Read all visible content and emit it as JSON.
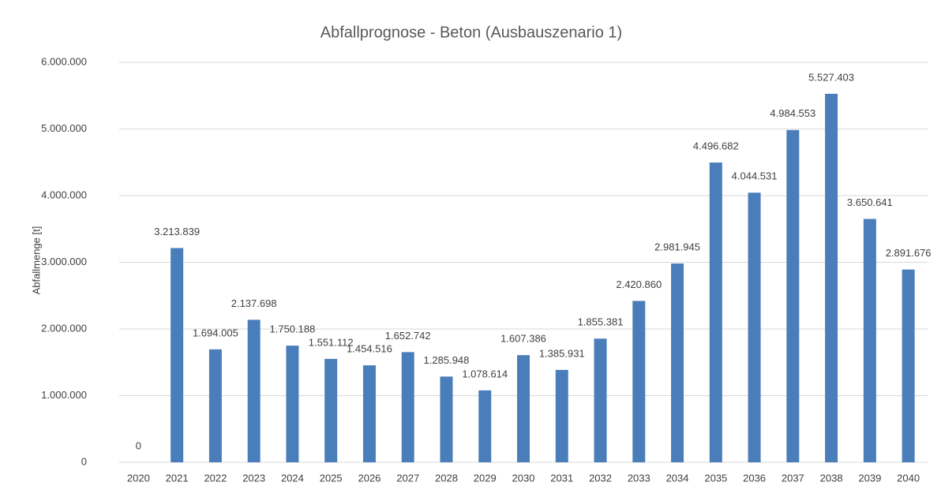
{
  "chart_data": {
    "type": "bar",
    "title": "Abfallprognose - Beton (Ausbauszenario 1)",
    "y_label": "Abfallmenge [t]",
    "categories": [
      "2020",
      "2021",
      "2022",
      "2023",
      "2024",
      "2025",
      "2026",
      "2027",
      "2028",
      "2029",
      "2030",
      "2031",
      "2032",
      "2033",
      "2034",
      "2035",
      "2036",
      "2037",
      "2038",
      "2039",
      "2040"
    ],
    "values": [
      0,
      3213839,
      1694005,
      2137698,
      1750188,
      1551112,
      1454516,
      1652742,
      1285948,
      1078614,
      1607386,
      1385931,
      1855381,
      2420860,
      2981945,
      4496682,
      4044531,
      4984553,
      5527403,
      3650641,
      2891676
    ],
    "value_labels": [
      "0",
      "3.213.839",
      "1.694.005",
      "2.137.698",
      "1.750.188",
      "1.551.112",
      "1.454.516",
      "1.652.742",
      "1.285.948",
      "1.078.614",
      "1.607.386",
      "1.385.931",
      "1.855.381",
      "2.420.860",
      "2.981.945",
      "4.496.682",
      "4.044.531",
      "4.984.553",
      "5.527.403",
      "3.650.641",
      "2.891.676"
    ],
    "color": "#4a7ebb",
    "ylim": [
      0,
      6000000
    ],
    "yticks": [
      0,
      {
        "value": 1000000,
        "label": "1.000.000"
      },
      {
        "value": 2000000,
        "label": "2.000.000"
      },
      {
        "value": 3000000,
        "label": "3.000.000"
      },
      {
        "value": 4000000,
        "label": "4.000.000"
      },
      {
        "value": 5000000,
        "label": "5.000.000"
      },
      {
        "value": 6000000,
        "label": "6.000.000"
      }
    ],
    "grid": true
  }
}
